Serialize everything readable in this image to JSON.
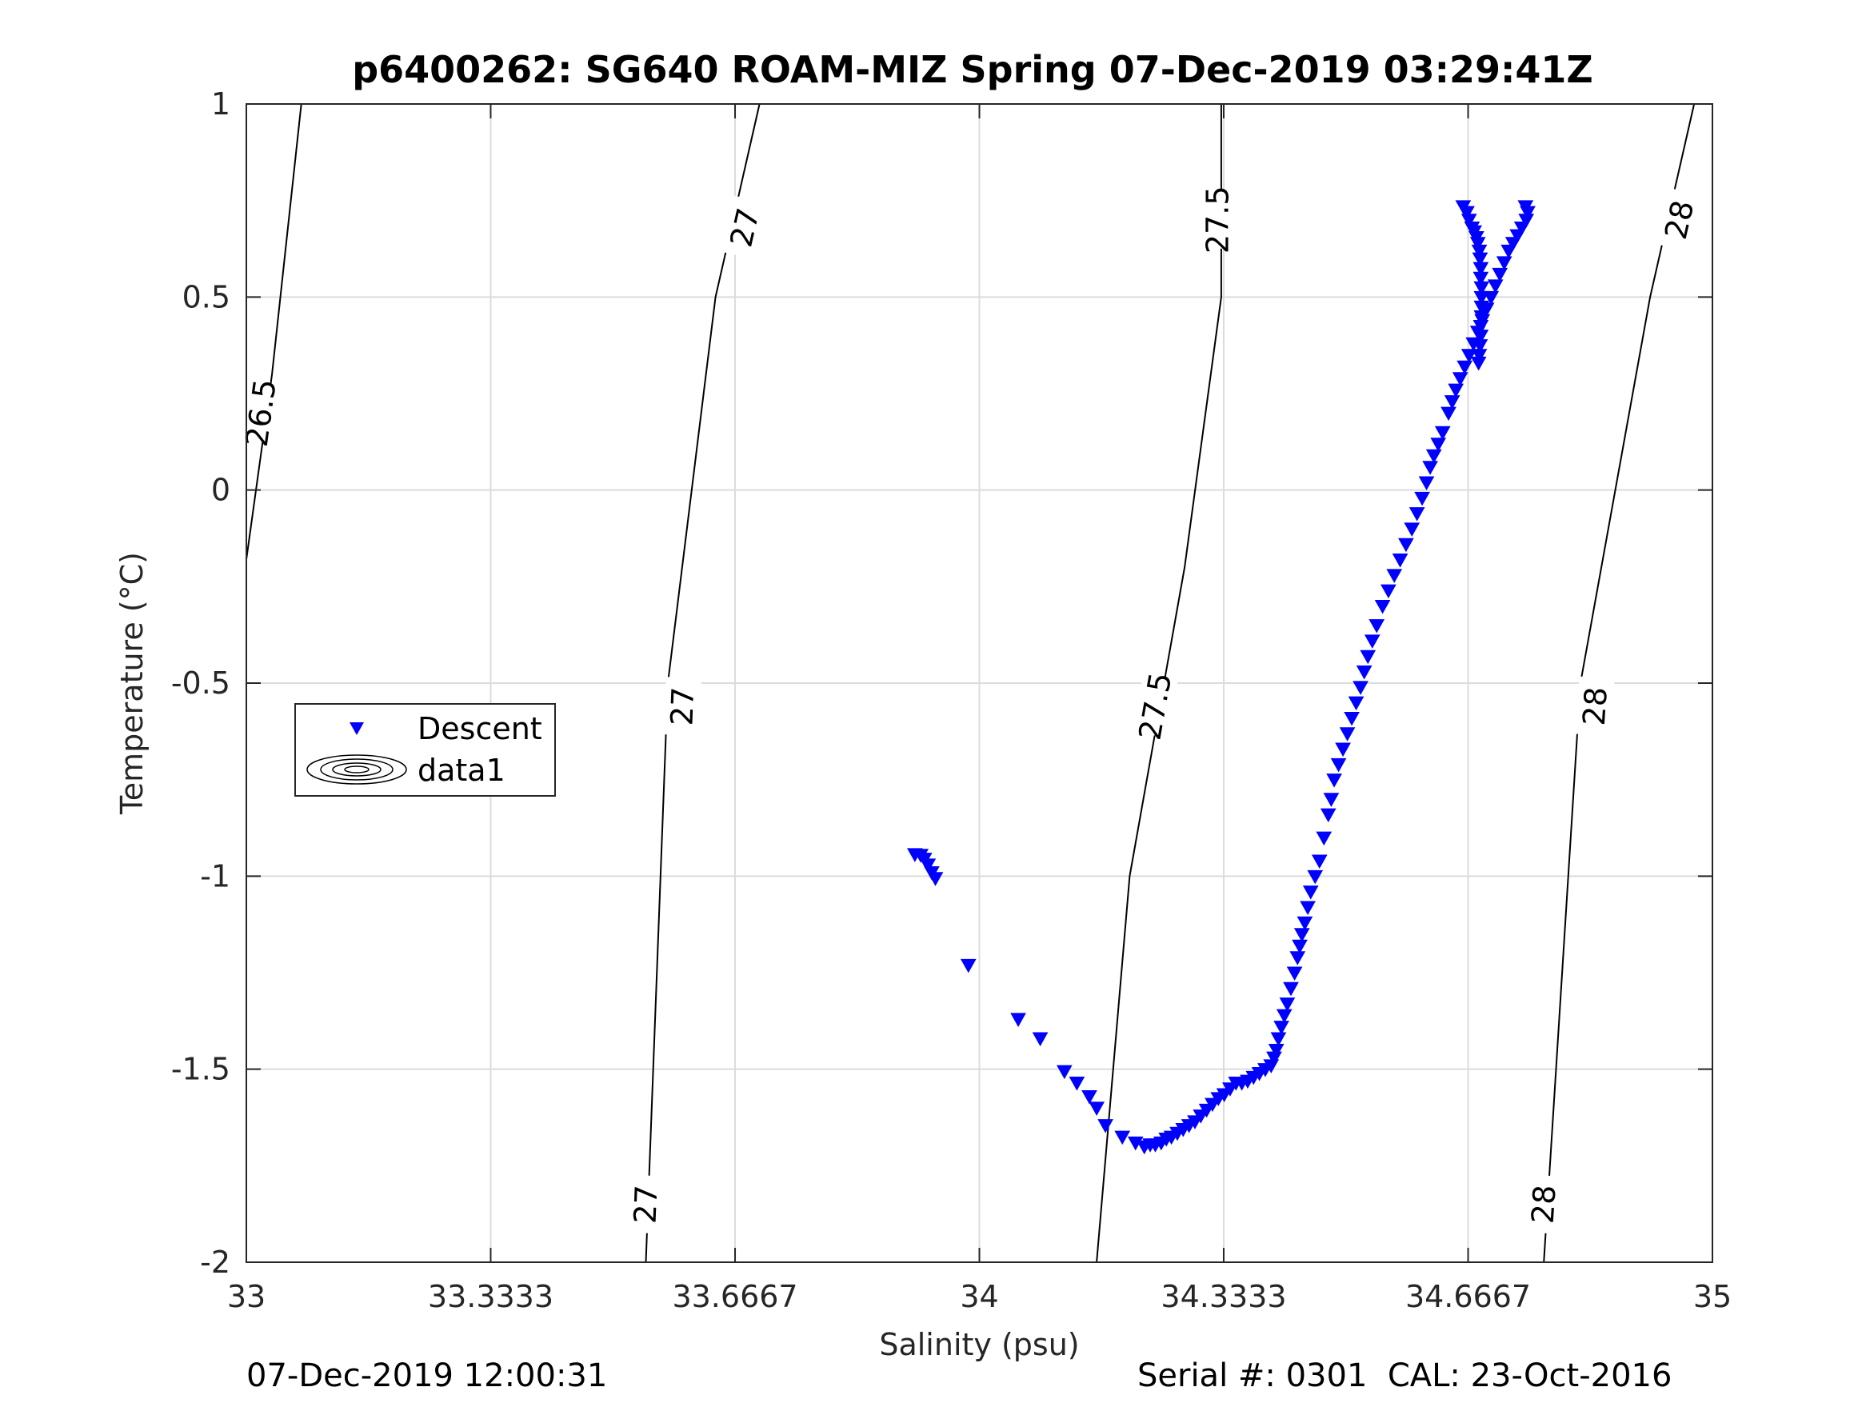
{
  "chart_data": {
    "type": "scatter",
    "title": "p6400262: SG640 ROAM-MIZ Spring 07-Dec-2019 03:29:41Z",
    "xlabel": "Salinity (psu)",
    "ylabel": "Temperature (°C)",
    "xlim": [
      33,
      35
    ],
    "ylim": [
      -2,
      1
    ],
    "xticks": [
      33,
      33.3333,
      33.6667,
      34,
      34.3333,
      34.6667,
      35
    ],
    "xtick_labels": [
      "33",
      "33.3333",
      "33.6667",
      "34",
      "34.3333",
      "34.6667",
      "35"
    ],
    "yticks": [
      -2,
      -1.5,
      -1,
      -0.5,
      0,
      0.5,
      1
    ],
    "ytick_labels": [
      "-2",
      "-1.5",
      "-1",
      "-0.5",
      "0",
      "0.5",
      "1"
    ],
    "grid": true,
    "legend_position": "middle-left",
    "legend": [
      {
        "label": "Descent",
        "marker": "triangle-down",
        "color": "#0000ff"
      },
      {
        "label": "data1",
        "marker": "contour",
        "color": "#000000"
      }
    ],
    "series": [
      {
        "name": "Descent",
        "color": "#0000ff",
        "marker": "triangle-down",
        "anchors": [
          [
            33.91,
            -0.94
          ],
          [
            33.92,
            -0.95
          ],
          [
            33.925,
            -0.97
          ],
          [
            33.93,
            -1.0
          ],
          [
            33.98,
            -1.22
          ],
          [
            34.05,
            -1.37
          ],
          [
            34.08,
            -1.42
          ],
          [
            34.11,
            -1.5
          ],
          [
            34.13,
            -1.54
          ],
          [
            34.15,
            -1.58
          ],
          [
            34.17,
            -1.65
          ],
          [
            34.2,
            -1.67
          ],
          [
            34.22,
            -1.69
          ],
          [
            34.24,
            -1.69
          ],
          [
            34.27,
            -1.66
          ],
          [
            34.3,
            -1.62
          ],
          [
            34.33,
            -1.57
          ],
          [
            34.35,
            -1.53
          ],
          [
            34.37,
            -1.52
          ],
          [
            34.39,
            -1.5
          ],
          [
            34.405,
            -1.45
          ],
          [
            34.41,
            -1.35
          ],
          [
            34.43,
            -1.22
          ],
          [
            34.44,
            -1.1
          ],
          [
            34.46,
            -0.95
          ],
          [
            34.48,
            -0.8
          ],
          [
            34.49,
            -0.7
          ],
          [
            34.51,
            -0.6
          ],
          [
            34.52,
            -0.48
          ],
          [
            34.54,
            -0.35
          ],
          [
            34.56,
            -0.25
          ],
          [
            34.59,
            -0.1
          ],
          [
            34.61,
            0.05
          ],
          [
            34.63,
            0.15
          ],
          [
            34.64,
            0.22
          ],
          [
            34.66,
            0.33
          ],
          [
            34.69,
            0.45
          ],
          [
            34.72,
            0.55
          ],
          [
            34.75,
            0.65
          ],
          [
            34.665,
            0.72
          ],
          [
            34.68,
            0.66
          ],
          [
            34.685,
            0.55
          ],
          [
            34.685,
            0.45
          ],
          [
            34.683,
            0.35
          ]
        ],
        "values": [
          [
            33.912,
            -0.943
          ],
          [
            33.92,
            -0.945
          ],
          [
            33.925,
            -0.955
          ],
          [
            33.93,
            -0.97
          ],
          [
            33.935,
            -0.99
          ],
          [
            33.94,
            -1.005
          ],
          [
            33.985,
            -1.23
          ],
          [
            34.053,
            -1.37
          ],
          [
            34.083,
            -1.42
          ],
          [
            34.116,
            -1.505
          ],
          [
            34.133,
            -1.535
          ],
          [
            34.15,
            -1.57
          ],
          [
            34.16,
            -1.6
          ],
          [
            34.172,
            -1.645
          ],
          [
            34.195,
            -1.675
          ],
          [
            34.213,
            -1.69
          ],
          [
            34.225,
            -1.7
          ],
          [
            34.233,
            -1.695
          ],
          [
            34.24,
            -1.695
          ],
          [
            34.248,
            -1.69
          ],
          [
            34.255,
            -1.68
          ],
          [
            34.262,
            -1.675
          ],
          [
            34.27,
            -1.665
          ],
          [
            34.278,
            -1.655
          ],
          [
            34.286,
            -1.645
          ],
          [
            34.294,
            -1.635
          ],
          [
            34.302,
            -1.62
          ],
          [
            34.31,
            -1.605
          ],
          [
            34.318,
            -1.59
          ],
          [
            34.326,
            -1.575
          ],
          [
            34.334,
            -1.565
          ],
          [
            34.342,
            -1.55
          ],
          [
            34.35,
            -1.535
          ],
          [
            34.358,
            -1.535
          ],
          [
            34.366,
            -1.53
          ],
          [
            34.374,
            -1.52
          ],
          [
            34.382,
            -1.51
          ],
          [
            34.39,
            -1.5
          ],
          [
            34.398,
            -1.49
          ],
          [
            34.402,
            -1.47
          ],
          [
            34.405,
            -1.45
          ],
          [
            34.408,
            -1.42
          ],
          [
            34.412,
            -1.39
          ],
          [
            34.416,
            -1.36
          ],
          [
            34.42,
            -1.33
          ],
          [
            34.425,
            -1.29
          ],
          [
            34.43,
            -1.25
          ],
          [
            34.434,
            -1.21
          ],
          [
            34.437,
            -1.18
          ],
          [
            34.44,
            -1.15
          ],
          [
            34.444,
            -1.12
          ],
          [
            34.448,
            -1.08
          ],
          [
            34.452,
            -1.04
          ],
          [
            34.458,
            -1.0
          ],
          [
            34.464,
            -0.96
          ],
          [
            34.47,
            -0.9
          ],
          [
            34.476,
            -0.84
          ],
          [
            34.48,
            -0.8
          ],
          [
            34.484,
            -0.75
          ],
          [
            34.49,
            -0.71
          ],
          [
            34.496,
            -0.67
          ],
          [
            34.502,
            -0.63
          ],
          [
            34.508,
            -0.59
          ],
          [
            34.514,
            -0.55
          ],
          [
            34.52,
            -0.51
          ],
          [
            34.525,
            -0.47
          ],
          [
            34.53,
            -0.43
          ],
          [
            34.536,
            -0.39
          ],
          [
            34.542,
            -0.35
          ],
          [
            34.55,
            -0.3
          ],
          [
            34.558,
            -0.26
          ],
          [
            34.566,
            -0.22
          ],
          [
            34.574,
            -0.18
          ],
          [
            34.582,
            -0.14
          ],
          [
            34.59,
            -0.1
          ],
          [
            34.597,
            -0.06
          ],
          [
            34.604,
            -0.02
          ],
          [
            34.61,
            0.02
          ],
          [
            34.615,
            0.06
          ],
          [
            34.62,
            0.09
          ],
          [
            34.626,
            0.12
          ],
          [
            34.632,
            0.15
          ],
          [
            34.64,
            0.2
          ],
          [
            34.645,
            0.23
          ],
          [
            34.65,
            0.26
          ],
          [
            34.656,
            0.29
          ],
          [
            34.662,
            0.32
          ],
          [
            34.668,
            0.35
          ],
          [
            34.674,
            0.38
          ],
          [
            34.68,
            0.41
          ],
          [
            34.686,
            0.44
          ],
          [
            34.692,
            0.47
          ],
          [
            34.698,
            0.5
          ],
          [
            34.704,
            0.53
          ],
          [
            34.71,
            0.56
          ],
          [
            34.716,
            0.59
          ],
          [
            34.722,
            0.62
          ],
          [
            34.728,
            0.64
          ],
          [
            34.734,
            0.66
          ],
          [
            34.74,
            0.68
          ],
          [
            34.746,
            0.7
          ],
          [
            34.748,
            0.72
          ],
          [
            34.745,
            0.735
          ],
          [
            34.66,
            0.735
          ],
          [
            34.665,
            0.72
          ],
          [
            34.668,
            0.7
          ],
          [
            34.672,
            0.68
          ],
          [
            34.675,
            0.67
          ],
          [
            34.678,
            0.655
          ],
          [
            34.68,
            0.64
          ],
          [
            34.682,
            0.62
          ],
          [
            34.683,
            0.6
          ],
          [
            34.684,
            0.575
          ],
          [
            34.684,
            0.55
          ],
          [
            34.685,
            0.525
          ],
          [
            34.685,
            0.5
          ],
          [
            34.685,
            0.475
          ],
          [
            34.685,
            0.45
          ],
          [
            34.684,
            0.425
          ],
          [
            34.684,
            0.4
          ],
          [
            34.683,
            0.375
          ],
          [
            34.682,
            0.35
          ],
          [
            34.681,
            0.33
          ]
        ]
      }
    ],
    "density_contours": [
      {
        "label": "26.5",
        "points": [
          [
            33.0,
            -0.18
          ],
          [
            33.035,
            0.3
          ],
          [
            33.075,
            1.0
          ]
        ],
        "labels_at": [
          [
            33.02,
            0.2
          ]
        ]
      },
      {
        "label": "27",
        "points": [
          [
            33.545,
            -2.0
          ],
          [
            33.575,
            -0.5
          ],
          [
            33.64,
            0.5
          ],
          [
            33.7,
            1.0
          ]
        ],
        "labels_at": [
          [
            33.545,
            -1.85
          ],
          [
            33.595,
            -0.56
          ],
          [
            33.68,
            0.68
          ]
        ]
      },
      {
        "label": "27.5",
        "points": [
          [
            34.16,
            -2.0
          ],
          [
            34.205,
            -1.0
          ],
          [
            34.28,
            -0.2
          ],
          [
            34.33,
            0.5
          ],
          [
            34.33,
            1.0
          ]
        ],
        "labels_at": [
          [
            34.24,
            -0.56
          ],
          [
            34.325,
            0.7
          ]
        ]
      },
      {
        "label": "28",
        "points": [
          [
            34.77,
            -2.0
          ],
          [
            34.82,
            -0.5
          ],
          [
            34.915,
            0.5
          ],
          [
            34.975,
            1.0
          ]
        ],
        "labels_at": [
          [
            34.77,
            -1.85
          ],
          [
            34.84,
            -0.56
          ],
          [
            34.955,
            0.7
          ]
        ]
      }
    ]
  },
  "footer": {
    "left": "07-Dec-2019 12:00:31",
    "right": "Serial #: 0301  CAL: 23-Oct-2016"
  }
}
